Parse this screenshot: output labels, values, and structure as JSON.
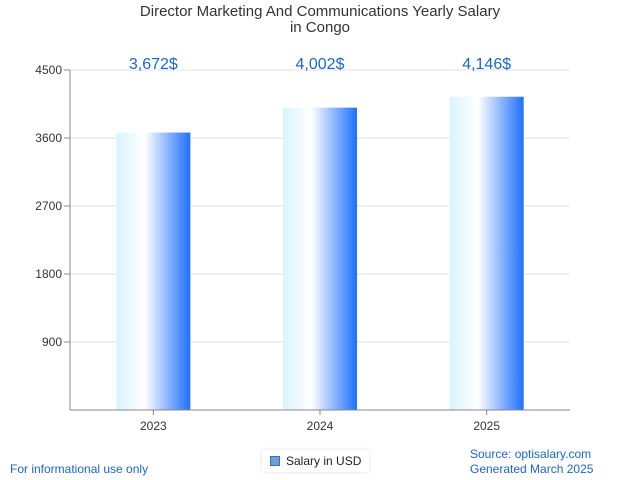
{
  "title_line1": "Director Marketing And Communications Yearly Salary",
  "title_line2": "in Congo",
  "legend_label": "Salary in USD",
  "footer": {
    "note": "For informational use only",
    "source": "Source: optisalary.com",
    "generated": "Generated March 2025"
  },
  "colors": {
    "bar_light": "#d9f3ff",
    "bar_mid": "#ffffff",
    "bar_dark": "#1f6fff",
    "label": "#1a66cc",
    "grid": "#e3e3e3",
    "axis": "#888888"
  },
  "chart_data": {
    "type": "bar",
    "title": "Director Marketing And Communications Yearly Salary in Congo",
    "xlabel": "",
    "ylabel": "",
    "categories": [
      "2023",
      "2024",
      "2025"
    ],
    "values": [
      3672,
      4002,
      4146
    ],
    "value_labels": [
      "3,672$",
      "4,002$",
      "4,146$"
    ],
    "ylim": [
      0,
      4500
    ],
    "yticks": [
      900,
      1800,
      2700,
      3600,
      4500
    ],
    "series": [
      {
        "name": "Salary in USD",
        "values": [
          3672,
          4002,
          4146
        ]
      }
    ],
    "legend_position": "bottom-center",
    "grid": true
  }
}
